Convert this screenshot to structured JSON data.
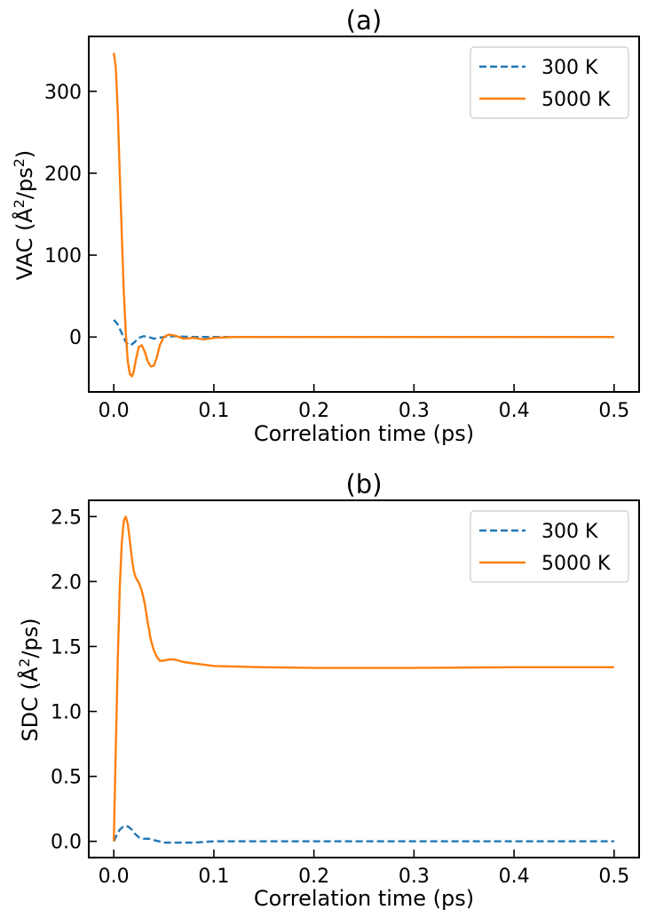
{
  "figure": {
    "panels": [
      {
        "title": "(a)",
        "xlabel": "Correlation time (ps)",
        "ylabel_main": "VAC (Å",
        "ylabel_sup1": "2",
        "ylabel_mid": "/ps",
        "ylabel_sup2": "2",
        "ylabel_end": ")"
      },
      {
        "title": "(b)",
        "xlabel": "Correlation time (ps)",
        "ylabel_main": "SDC (Å",
        "ylabel_sup1": "2",
        "ylabel_mid": "/ps)",
        "ylabel_sup2": "",
        "ylabel_end": ""
      }
    ]
  },
  "chart_data": [
    {
      "type": "line",
      "title": "(a)",
      "xlabel": "Correlation time (ps)",
      "ylabel": "VAC (Å²/ps²)",
      "xlim": [
        -0.025,
        0.525
      ],
      "ylim": [
        -67,
        367
      ],
      "xticks": [
        0.0,
        0.1,
        0.2,
        0.3,
        0.4,
        0.5
      ],
      "xtick_labels": [
        "0.0",
        "0.1",
        "0.2",
        "0.3",
        "0.4",
        "0.5"
      ],
      "yticks": [
        0,
        100,
        200,
        300
      ],
      "ytick_labels": [
        "0",
        "100",
        "200",
        "300"
      ],
      "grid": false,
      "legend": "top-right",
      "series": [
        {
          "name": "300 K",
          "color": "#1f77b4",
          "dashed": true,
          "x": [
            0.0,
            0.003,
            0.006,
            0.009,
            0.012,
            0.015,
            0.018,
            0.021,
            0.025,
            0.03,
            0.035,
            0.04,
            0.045,
            0.05,
            0.06,
            0.07,
            0.08,
            0.1,
            0.15,
            0.2,
            0.3,
            0.4,
            0.5
          ],
          "y": [
            21,
            17,
            10,
            2,
            -6,
            -10,
            -9,
            -6,
            -1,
            1,
            0,
            -2,
            -1,
            0,
            1,
            0.5,
            0,
            0,
            0,
            0,
            0,
            0,
            0
          ]
        },
        {
          "name": "5000 K",
          "color": "#ff7f0e",
          "dashed": false,
          "x": [
            0.0,
            0.002,
            0.004,
            0.006,
            0.008,
            0.01,
            0.012,
            0.014,
            0.016,
            0.018,
            0.02,
            0.022,
            0.025,
            0.028,
            0.031,
            0.034,
            0.037,
            0.04,
            0.043,
            0.046,
            0.05,
            0.055,
            0.06,
            0.065,
            0.07,
            0.08,
            0.09,
            0.1,
            0.12,
            0.15,
            0.2,
            0.3,
            0.4,
            0.5
          ],
          "y": [
            347,
            330,
            275,
            200,
            125,
            55,
            5,
            -30,
            -45,
            -48,
            -42,
            -28,
            -12,
            -10,
            -18,
            -30,
            -36,
            -35,
            -25,
            -10,
            0,
            3,
            2,
            0,
            -2,
            -1,
            -3,
            -1,
            0,
            0,
            0,
            0,
            0,
            0
          ]
        }
      ]
    },
    {
      "type": "line",
      "title": "(b)",
      "xlabel": "Correlation time (ps)",
      "ylabel": "SDC (Å²/ps)",
      "xlim": [
        -0.025,
        0.525
      ],
      "ylim": [
        -0.125,
        2.625
      ],
      "xticks": [
        0.0,
        0.1,
        0.2,
        0.3,
        0.4,
        0.5
      ],
      "xtick_labels": [
        "0.0",
        "0.1",
        "0.2",
        "0.3",
        "0.4",
        "0.5"
      ],
      "yticks": [
        0.0,
        0.5,
        1.0,
        1.5,
        2.0,
        2.5
      ],
      "ytick_labels": [
        "0.0",
        "0.5",
        "1.0",
        "1.5",
        "2.0",
        "2.5"
      ],
      "grid": false,
      "legend": "top-right",
      "series": [
        {
          "name": "300 K",
          "color": "#1f77b4",
          "dashed": true,
          "x": [
            0.0,
            0.003,
            0.006,
            0.009,
            0.012,
            0.015,
            0.018,
            0.021,
            0.025,
            0.03,
            0.035,
            0.04,
            0.045,
            0.05,
            0.06,
            0.08,
            0.1,
            0.15,
            0.2,
            0.3,
            0.4,
            0.5
          ],
          "y": [
            0.0,
            0.05,
            0.09,
            0.11,
            0.12,
            0.11,
            0.09,
            0.06,
            0.03,
            0.02,
            0.02,
            0.01,
            0.0,
            -0.01,
            -0.01,
            -0.01,
            0.0,
            0.0,
            0.0,
            0.0,
            0.0,
            0.0
          ]
        },
        {
          "name": "5000 K",
          "color": "#ff7f0e",
          "dashed": false,
          "x": [
            0.0,
            0.002,
            0.004,
            0.006,
            0.008,
            0.01,
            0.012,
            0.014,
            0.016,
            0.018,
            0.02,
            0.022,
            0.025,
            0.028,
            0.031,
            0.034,
            0.037,
            0.04,
            0.043,
            0.046,
            0.05,
            0.055,
            0.06,
            0.065,
            0.07,
            0.08,
            0.09,
            0.1,
            0.12,
            0.15,
            0.2,
            0.25,
            0.3,
            0.4,
            0.5
          ],
          "y": [
            0.0,
            0.7,
            1.4,
            1.95,
            2.3,
            2.47,
            2.5,
            2.44,
            2.32,
            2.18,
            2.08,
            2.03,
            1.99,
            1.93,
            1.83,
            1.68,
            1.55,
            1.47,
            1.42,
            1.39,
            1.39,
            1.4,
            1.4,
            1.39,
            1.38,
            1.37,
            1.36,
            1.35,
            1.345,
            1.34,
            1.335,
            1.335,
            1.335,
            1.34,
            1.34
          ]
        }
      ]
    }
  ]
}
